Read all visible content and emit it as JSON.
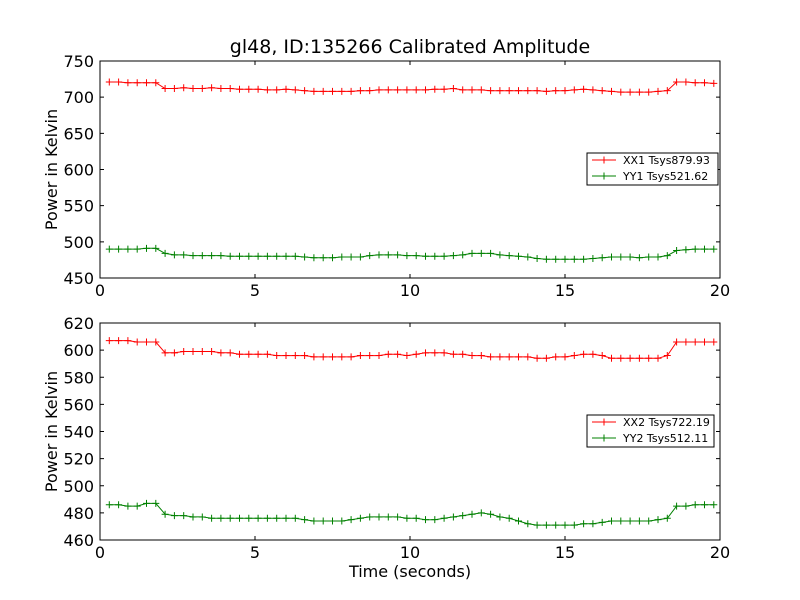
{
  "chart_data": [
    {
      "type": "line",
      "title": "gl48, ID:135266 Calibrated Amplitude",
      "xlabel": "",
      "ylabel": "Power in Kelvin",
      "xlim": [
        0,
        20
      ],
      "ylim": [
        450,
        750
      ],
      "xticks": [
        0,
        5,
        10,
        15,
        20
      ],
      "yticks": [
        450,
        500,
        550,
        600,
        650,
        700,
        750
      ],
      "grid": false,
      "legend_position": "center-right",
      "x": [
        0.3,
        0.6,
        0.9,
        1.2,
        1.5,
        1.8,
        2.1,
        2.4,
        2.7,
        3.0,
        3.3,
        3.6,
        3.9,
        4.2,
        4.5,
        4.8,
        5.1,
        5.4,
        5.7,
        6.0,
        6.3,
        6.6,
        6.9,
        7.2,
        7.5,
        7.8,
        8.1,
        8.4,
        8.7,
        9.0,
        9.3,
        9.6,
        9.9,
        10.2,
        10.5,
        10.8,
        11.1,
        11.4,
        11.7,
        12.0,
        12.3,
        12.6,
        12.9,
        13.2,
        13.5,
        13.8,
        14.1,
        14.4,
        14.7,
        15.0,
        15.3,
        15.6,
        15.9,
        16.2,
        16.5,
        16.8,
        17.1,
        17.4,
        17.7,
        18.0,
        18.3,
        18.6,
        18.9,
        19.2,
        19.5,
        19.8
      ],
      "series": [
        {
          "name": "XX1 Tsys879.93",
          "color": "#ff0000",
          "values": [
            721,
            721,
            720,
            720,
            720,
            720,
            712,
            712,
            713,
            712,
            712,
            713,
            712,
            712,
            711,
            711,
            711,
            710,
            710,
            711,
            710,
            709,
            708,
            708,
            708,
            708,
            708,
            709,
            709,
            710,
            710,
            710,
            710,
            710,
            710,
            711,
            711,
            712,
            710,
            710,
            710,
            709,
            709,
            709,
            709,
            709,
            709,
            708,
            709,
            709,
            710,
            711,
            710,
            709,
            708,
            707,
            707,
            707,
            707,
            708,
            709,
            721,
            721,
            720,
            720,
            719
          ]
        },
        {
          "name": "YY1 Tsys521.62",
          "color": "#008000",
          "values": [
            490,
            490,
            490,
            490,
            491,
            491,
            484,
            482,
            482,
            481,
            481,
            481,
            481,
            480,
            480,
            480,
            480,
            480,
            480,
            480,
            480,
            479,
            478,
            478,
            478,
            479,
            479,
            479,
            481,
            482,
            482,
            482,
            481,
            481,
            480,
            480,
            480,
            481,
            482,
            484,
            484,
            484,
            482,
            481,
            480,
            479,
            477,
            476,
            476,
            476,
            476,
            476,
            477,
            478,
            479,
            479,
            479,
            478,
            479,
            479,
            481,
            488,
            489,
            490,
            490,
            490
          ]
        }
      ]
    },
    {
      "type": "line",
      "title": "",
      "xlabel": "Time (seconds)",
      "ylabel": "Power in Kelvin",
      "xlim": [
        0,
        20
      ],
      "ylim": [
        460,
        620
      ],
      "xticks": [
        0,
        5,
        10,
        15,
        20
      ],
      "yticks": [
        460,
        480,
        500,
        520,
        540,
        560,
        580,
        600,
        620
      ],
      "grid": false,
      "legend_position": "center-right",
      "x": [
        0.3,
        0.6,
        0.9,
        1.2,
        1.5,
        1.8,
        2.1,
        2.4,
        2.7,
        3.0,
        3.3,
        3.6,
        3.9,
        4.2,
        4.5,
        4.8,
        5.1,
        5.4,
        5.7,
        6.0,
        6.3,
        6.6,
        6.9,
        7.2,
        7.5,
        7.8,
        8.1,
        8.4,
        8.7,
        9.0,
        9.3,
        9.6,
        9.9,
        10.2,
        10.5,
        10.8,
        11.1,
        11.4,
        11.7,
        12.0,
        12.3,
        12.6,
        12.9,
        13.2,
        13.5,
        13.8,
        14.1,
        14.4,
        14.7,
        15.0,
        15.3,
        15.6,
        15.9,
        16.2,
        16.5,
        16.8,
        17.1,
        17.4,
        17.7,
        18.0,
        18.3,
        18.6,
        18.9,
        19.2,
        19.5,
        19.8
      ],
      "series": [
        {
          "name": "XX2 Tsys722.19",
          "color": "#ff0000",
          "values": [
            607,
            607,
            607,
            606,
            606,
            606,
            598,
            598,
            599,
            599,
            599,
            599,
            598,
            598,
            597,
            597,
            597,
            597,
            596,
            596,
            596,
            596,
            595,
            595,
            595,
            595,
            595,
            596,
            596,
            596,
            597,
            597,
            596,
            597,
            598,
            598,
            598,
            597,
            597,
            596,
            596,
            595,
            595,
            595,
            595,
            595,
            594,
            594,
            595,
            595,
            596,
            597,
            597,
            596,
            594,
            594,
            594,
            594,
            594,
            594,
            596,
            606,
            606,
            606,
            606,
            606
          ]
        },
        {
          "name": "YY2 Tsys512.11",
          "color": "#008000",
          "values": [
            486,
            486,
            485,
            485,
            487,
            487,
            479,
            478,
            478,
            477,
            477,
            476,
            476,
            476,
            476,
            476,
            476,
            476,
            476,
            476,
            476,
            475,
            474,
            474,
            474,
            474,
            475,
            476,
            477,
            477,
            477,
            477,
            476,
            476,
            475,
            475,
            476,
            477,
            478,
            479,
            480,
            479,
            477,
            476,
            474,
            472,
            471,
            471,
            471,
            471,
            471,
            472,
            472,
            473,
            474,
            474,
            474,
            474,
            474,
            475,
            476,
            485,
            485,
            486,
            486,
            486
          ]
        }
      ]
    }
  ]
}
